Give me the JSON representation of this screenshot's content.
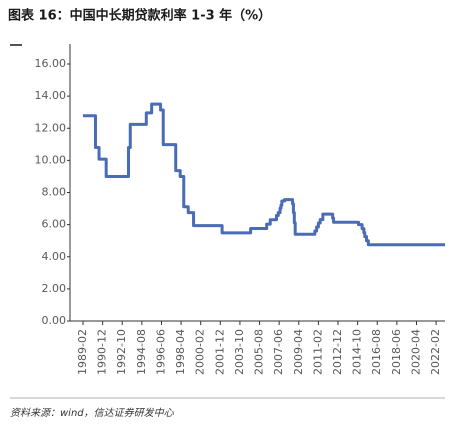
{
  "chart_data": {
    "type": "line",
    "title": "图表 16：中国中长期贷款利率 1-3 年（%）",
    "source": "资料来源：wind，信达证券研发中心",
    "x": [
      "1989-02",
      "1990-04",
      "1990-08",
      "1991-04",
      "1993-05",
      "1993-07",
      "1995-01",
      "1995-07",
      "1996-05",
      "1996-08",
      "1997-10",
      "1998-03",
      "1998-07",
      "1998-12",
      "1999-06",
      "2002-02",
      "2004-10",
      "2006-04",
      "2006-08",
      "2007-03",
      "2007-05",
      "2007-07",
      "2007-08",
      "2007-09",
      "2007-12",
      "2008-09",
      "2008-10",
      "2008-11",
      "2008-12",
      "2010-10",
      "2010-12",
      "2011-02",
      "2011-04",
      "2011-07",
      "2012-06",
      "2012-07",
      "2014-11",
      "2015-03",
      "2015-05",
      "2015-06",
      "2015-08",
      "2015-10",
      "2022-12"
    ],
    "series": [
      {
        "name": "中长期贷款利率 1-3 年",
        "color": "#4a6bb5",
        "values": [
          12.78,
          10.8,
          10.08,
          9.0,
          10.8,
          12.24,
          12.96,
          13.5,
          13.14,
          10.98,
          9.36,
          9.0,
          7.11,
          6.75,
          5.94,
          5.49,
          5.76,
          6.03,
          6.3,
          6.57,
          6.75,
          7.02,
          7.2,
          7.47,
          7.56,
          7.29,
          6.75,
          6.12,
          5.4,
          5.6,
          5.85,
          6.1,
          6.31,
          6.65,
          6.4,
          6.15,
          6.0,
          5.75,
          5.5,
          5.25,
          5.0,
          4.75,
          4.75
        ]
      }
    ],
    "xlim": [
      "1989-02",
      "2022-12"
    ],
    "xticks": [
      "1989-02",
      "1990-12",
      "1992-10",
      "1994-08",
      "1996-06",
      "1998-04",
      "2000-02",
      "2001-12",
      "2003-10",
      "2005-08",
      "2007-06",
      "2009-04",
      "2011-02",
      "2012-12",
      "2014-10",
      "2016-08",
      "2018-06",
      "2020-04",
      "2022-02"
    ],
    "ylim": [
      0,
      16
    ],
    "yticks": [
      {
        "value": 0,
        "label": "0.00"
      },
      {
        "value": 2,
        "label": "2.00"
      },
      {
        "value": 4,
        "label": "4.00"
      },
      {
        "value": 6,
        "label": "6.00"
      },
      {
        "value": 8,
        "label": "8.00"
      },
      {
        "value": 10,
        "label": "10.00"
      },
      {
        "value": 12,
        "label": "12.00"
      },
      {
        "value": 14,
        "label": "14.00"
      },
      {
        "value": 16,
        "label": "16.00"
      }
    ]
  }
}
